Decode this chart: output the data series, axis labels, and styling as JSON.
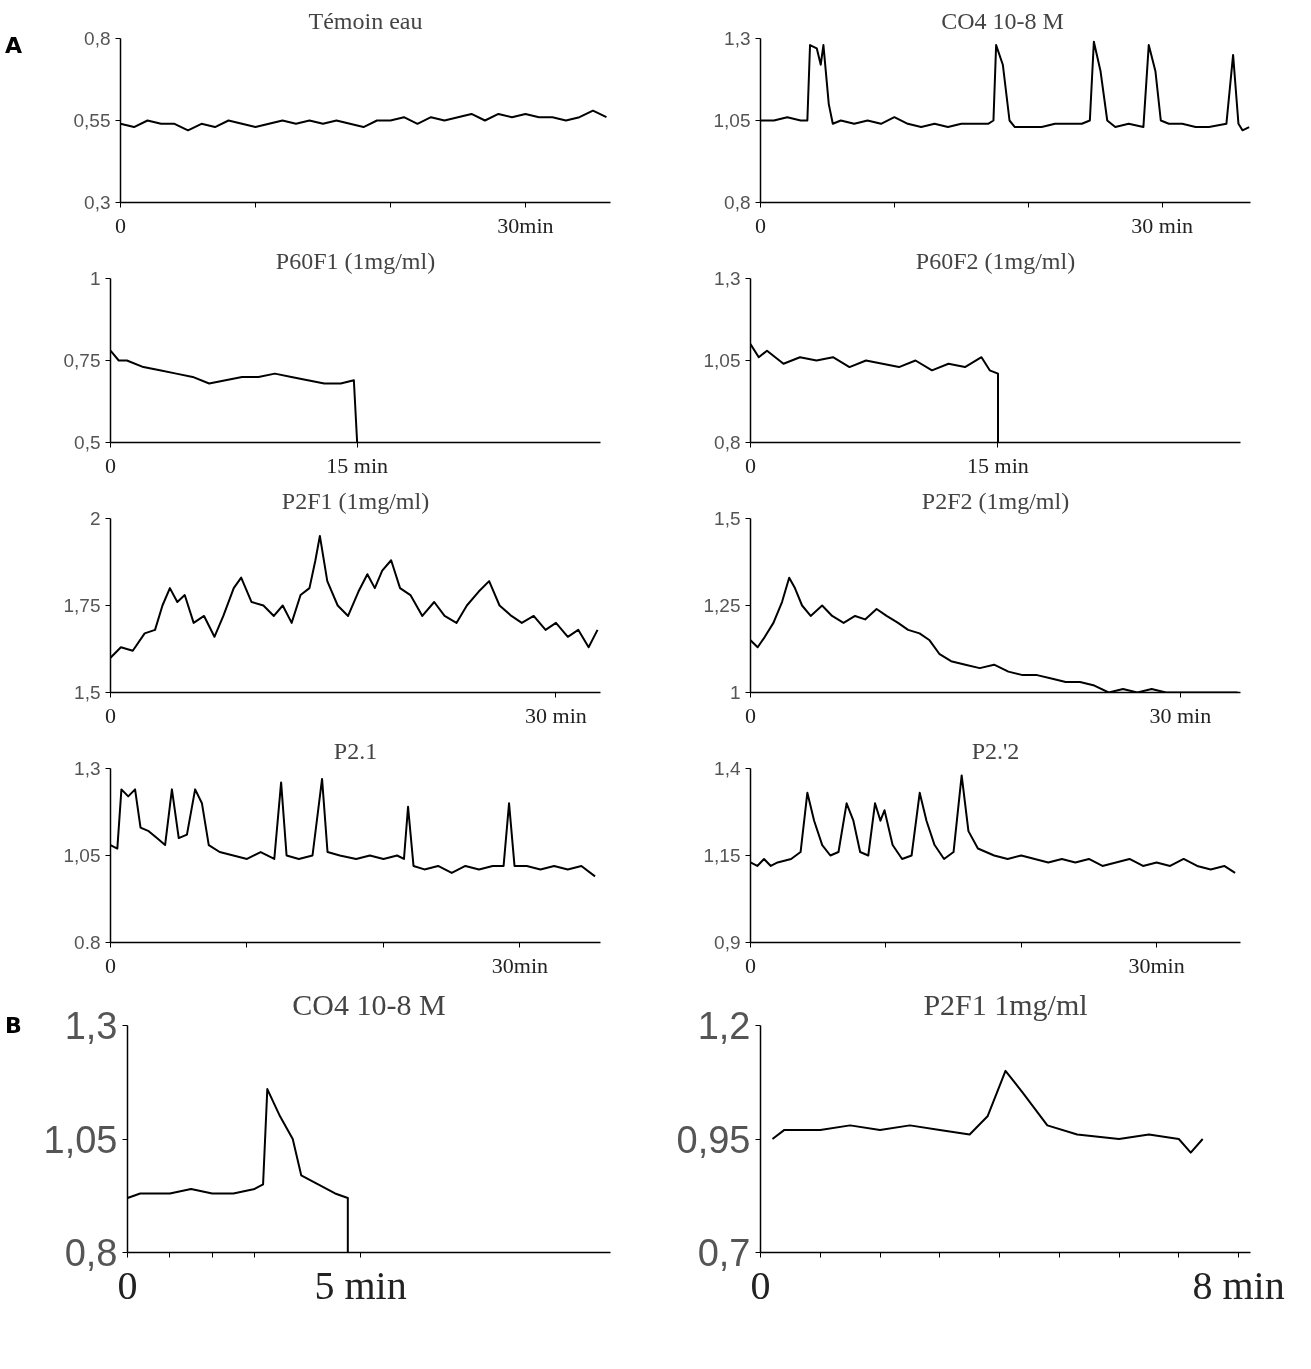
{
  "chart_data": [
    {
      "type": "line",
      "title": "Témoin eau",
      "annotations": [
        "A"
      ],
      "xlim": [
        0,
        36.3
      ],
      "ylim": [
        0.3,
        0.8
      ],
      "xticks": [
        {
          "value": 0,
          "label": "0"
        },
        {
          "value": 10,
          "label": null
        },
        {
          "value": 20,
          "label": null
        },
        {
          "value": 30,
          "label": "30min"
        }
      ],
      "yticks": [
        {
          "value": 0.3,
          "label": "0,3"
        },
        {
          "value": 0.55,
          "label": "0,55"
        },
        {
          "value": 0.8,
          "label": "0,8"
        }
      ],
      "series": [
        {
          "color": "#000000",
          "x": [
            0,
            1,
            2,
            3,
            4,
            5,
            6,
            7,
            8,
            9,
            10,
            11,
            12,
            13,
            14,
            15,
            16,
            17,
            18,
            19,
            20,
            21,
            22,
            23,
            24,
            25,
            26,
            27,
            28,
            29,
            30,
            31,
            32,
            33,
            34,
            35,
            36
          ],
          "values": [
            0.54,
            0.53,
            0.55,
            0.54,
            0.54,
            0.52,
            0.54,
            0.53,
            0.55,
            0.54,
            0.53,
            0.54,
            0.55,
            0.54,
            0.55,
            0.54,
            0.55,
            0.54,
            0.53,
            0.55,
            0.55,
            0.56,
            0.54,
            0.56,
            0.55,
            0.56,
            0.57,
            0.55,
            0.57,
            0.56,
            0.57,
            0.56,
            0.56,
            0.55,
            0.56,
            0.58,
            0.56
          ]
        }
      ]
    },
    {
      "type": "line",
      "title": "CO4 10-8  M",
      "xlim": [
        0,
        36.6
      ],
      "ylim": [
        0.8,
        1.3
      ],
      "xticks": [
        {
          "value": 0,
          "label": "0"
        },
        {
          "value": 10,
          "label": null
        },
        {
          "value": 20,
          "label": null
        },
        {
          "value": 30,
          "label": "30 min"
        }
      ],
      "yticks": [
        {
          "value": 0.8,
          "label": "0,8"
        },
        {
          "value": 1.05,
          "label": "1,05"
        },
        {
          "value": 1.3,
          "label": "1,3"
        }
      ],
      "series": [
        {
          "color": "#000000",
          "x": [
            0,
            1,
            2,
            3,
            3.5,
            3.7,
            4.2,
            4.5,
            4.7,
            5.1,
            5.4,
            6,
            7,
            8,
            9,
            10,
            11,
            12,
            13,
            14,
            15,
            16,
            17,
            17.4,
            17.6,
            18.1,
            18.6,
            19,
            20,
            21,
            22,
            23,
            24,
            24.6,
            24.9,
            25.4,
            25.9,
            26.5,
            27.5,
            28.6,
            29.0,
            29.5,
            29.9,
            30.5,
            31.5,
            32.5,
            33.5,
            34.8,
            35.3,
            35.7,
            36,
            36.5
          ],
          "values": [
            1.05,
            1.05,
            1.06,
            1.05,
            1.05,
            1.28,
            1.27,
            1.22,
            1.28,
            1.1,
            1.04,
            1.05,
            1.04,
            1.05,
            1.04,
            1.06,
            1.04,
            1.03,
            1.04,
            1.03,
            1.04,
            1.04,
            1.04,
            1.05,
            1.28,
            1.22,
            1.05,
            1.03,
            1.03,
            1.03,
            1.04,
            1.04,
            1.04,
            1.05,
            1.29,
            1.2,
            1.05,
            1.03,
            1.04,
            1.03,
            1.28,
            1.2,
            1.05,
            1.04,
            1.04,
            1.03,
            1.03,
            1.04,
            1.25,
            1.04,
            1.02,
            1.03
          ]
        }
      ]
    },
    {
      "type": "line",
      "title": "P60F1 (1mg/ml)",
      "xlim": [
        0,
        29.8
      ],
      "ylim": [
        0.5,
        1
      ],
      "xticks": [
        {
          "value": 0,
          "label": "0"
        },
        {
          "value": 15,
          "label": "15 min"
        }
      ],
      "yticks": [
        {
          "value": 0.5,
          "label": "0,5"
        },
        {
          "value": 0.75,
          "label": "0,75"
        },
        1
      ],
      "series": [
        {
          "color": "#000000",
          "x": [
            0,
            0.5,
            1,
            2,
            3,
            4,
            5,
            6,
            7,
            8,
            9,
            10,
            11,
            12,
            13,
            14,
            14.8,
            15
          ],
          "values": [
            0.78,
            0.75,
            0.75,
            0.73,
            0.72,
            0.71,
            0.7,
            0.68,
            0.69,
            0.7,
            0.7,
            0.71,
            0.7,
            0.69,
            0.68,
            0.68,
            0.69,
            0.5
          ]
        }
      ]
    },
    {
      "type": "line",
      "title": "P60F2 (1mg/ml)",
      "xlim": [
        0,
        29.7
      ],
      "ylim": [
        0.8,
        1.3
      ],
      "xticks": [
        {
          "value": 0,
          "label": "0"
        },
        {
          "value": 15,
          "label": "15 min"
        }
      ],
      "yticks": [
        {
          "value": 0.8,
          "label": "0,8"
        },
        {
          "value": 1.05,
          "label": "1,05"
        },
        {
          "value": 1.3,
          "label": "1,3"
        }
      ],
      "series": [
        {
          "color": "#000000",
          "x": [
            0,
            0.5,
            1,
            2,
            3,
            4,
            5,
            6,
            7,
            8,
            9,
            10,
            11,
            12,
            13,
            14,
            14.5,
            15,
            15
          ],
          "values": [
            1.1,
            1.06,
            1.08,
            1.04,
            1.06,
            1.05,
            1.06,
            1.03,
            1.05,
            1.04,
            1.03,
            1.05,
            1.02,
            1.04,
            1.03,
            1.06,
            1.02,
            1.01,
            0.8
          ]
        }
      ]
    },
    {
      "type": "line",
      "title": "P2F1 (1mg/ml)",
      "xlim": [
        0,
        33
      ],
      "ylim": [
        1.5,
        2
      ],
      "xticks": [
        {
          "value": 0,
          "label": "0"
        },
        {
          "value": 30,
          "label": "30 min"
        }
      ],
      "yticks": [
        {
          "value": 1.5,
          "label": "1,5"
        },
        {
          "value": 1.75,
          "label": "1,75"
        },
        2
      ],
      "series": [
        {
          "color": "#000000",
          "x": [
            0,
            0.7,
            1.5,
            2.3,
            3,
            3.5,
            4,
            4.5,
            5,
            5.6,
            6.3,
            7,
            7.6,
            8.3,
            8.8,
            9.5,
            10.3,
            11,
            11.6,
            12.2,
            12.8,
            13.4,
            13.8,
            14.1,
            14.6,
            15.3,
            16,
            16.7,
            17.3,
            17.8,
            18.3,
            18.9,
            19.5,
            20.2,
            21,
            21.8,
            22.5,
            23.3,
            24,
            24.8,
            25.5,
            26.2,
            27,
            27.7,
            28.5,
            29.3,
            30,
            30.8,
            31.5,
            32.2,
            32.8
          ],
          "values": [
            1.6,
            1.63,
            1.62,
            1.67,
            1.68,
            1.75,
            1.8,
            1.76,
            1.78,
            1.7,
            1.72,
            1.66,
            1.72,
            1.8,
            1.83,
            1.76,
            1.75,
            1.72,
            1.75,
            1.7,
            1.78,
            1.8,
            1.88,
            1.95,
            1.82,
            1.75,
            1.72,
            1.79,
            1.84,
            1.8,
            1.85,
            1.88,
            1.8,
            1.78,
            1.72,
            1.76,
            1.72,
            1.7,
            1.75,
            1.79,
            1.82,
            1.75,
            1.72,
            1.7,
            1.72,
            1.68,
            1.7,
            1.66,
            1.68,
            1.63,
            1.68
          ]
        }
      ]
    },
    {
      "type": "line",
      "title": "P2F2 (1mg/ml)",
      "xlim": [
        0,
        34.2
      ],
      "ylim": [
        1,
        1.5
      ],
      "xticks": [
        {
          "value": 0,
          "label": "0"
        },
        {
          "value": 30,
          "label": "30 min"
        }
      ],
      "yticks": [
        1,
        {
          "value": 1.25,
          "label": "1,25"
        },
        {
          "value": 1.5,
          "label": "1,5"
        }
      ],
      "series": [
        {
          "color": "#000000",
          "x": [
            0,
            0.5,
            1,
            1.6,
            2.2,
            2.7,
            3.1,
            3.6,
            4.2,
            5,
            5.7,
            6.5,
            7.3,
            8,
            8.8,
            9.5,
            10.3,
            11,
            11.8,
            12.5,
            13.2,
            14,
            15,
            16,
            17,
            18,
            19,
            20,
            21,
            22,
            23,
            24,
            25,
            26,
            27,
            28,
            29,
            30,
            31,
            32,
            33,
            34
          ],
          "values": [
            1.15,
            1.13,
            1.16,
            1.2,
            1.26,
            1.33,
            1.3,
            1.25,
            1.22,
            1.25,
            1.22,
            1.2,
            1.22,
            1.21,
            1.24,
            1.22,
            1.2,
            1.18,
            1.17,
            1.15,
            1.11,
            1.09,
            1.08,
            1.07,
            1.08,
            1.06,
            1.05,
            1.05,
            1.04,
            1.03,
            1.03,
            1.02,
            1.0,
            1.01,
            1.0,
            1.01,
            1.0,
            1.0,
            1.0,
            1.0,
            1.0,
            1.0
          ]
        }
      ]
    },
    {
      "type": "line",
      "title": "P2.1",
      "xlim": [
        0,
        35.9
      ],
      "ylim": [
        0.8,
        1.3
      ],
      "xticks": [
        {
          "value": 0,
          "label": "0"
        },
        {
          "value": 10,
          "label": null
        },
        {
          "value": 20,
          "label": null
        },
        {
          "value": 30,
          "label": "30min"
        }
      ],
      "yticks": [
        {
          "value": 0.8,
          "label": "0.8"
        },
        {
          "value": 1.05,
          "label": "1,05"
        },
        {
          "value": 1.3,
          "label": "1,3"
        }
      ],
      "series": [
        {
          "color": "#000000",
          "x": [
            0,
            0.5,
            0.8,
            1.3,
            1.8,
            2.2,
            2.8,
            3.4,
            4,
            4.5,
            5,
            5.6,
            6.2,
            6.7,
            7.2,
            8,
            9,
            10,
            11,
            12,
            12.5,
            12.9,
            13.8,
            14.8,
            15.5,
            15.9,
            16.8,
            18,
            19,
            20,
            21,
            21.5,
            21.8,
            22.2,
            23,
            24,
            25,
            26,
            27,
            28,
            28.8,
            29.2,
            29.6,
            30.5,
            31.5,
            32.5,
            33.5,
            34.5,
            35.5
          ],
          "values": [
            1.08,
            1.07,
            1.24,
            1.22,
            1.24,
            1.13,
            1.12,
            1.1,
            1.08,
            1.24,
            1.1,
            1.11,
            1.24,
            1.2,
            1.08,
            1.06,
            1.05,
            1.04,
            1.06,
            1.04,
            1.26,
            1.05,
            1.04,
            1.05,
            1.27,
            1.06,
            1.05,
            1.04,
            1.05,
            1.04,
            1.05,
            1.04,
            1.19,
            1.02,
            1.01,
            1.02,
            1.0,
            1.02,
            1.01,
            1.02,
            1.02,
            1.2,
            1.02,
            1.02,
            1.01,
            1.02,
            1.01,
            1.02,
            0.99
          ]
        }
      ]
    },
    {
      "type": "line",
      "title": "P2.'2",
      "xlim": [
        0,
        36.2
      ],
      "ylim": [
        0.9,
        1.4
      ],
      "xticks": [
        {
          "value": 0,
          "label": "0"
        },
        {
          "value": 10,
          "label": null
        },
        {
          "value": 20,
          "label": null
        },
        {
          "value": 30,
          "label": "30min"
        }
      ],
      "yticks": [
        {
          "value": 0.9,
          "label": "0,9"
        },
        {
          "value": 1.15,
          "label": "1,15"
        },
        {
          "value": 1.4,
          "label": "1,4"
        }
      ],
      "series": [
        {
          "color": "#000000",
          "x": [
            0,
            0.5,
            1,
            1.5,
            2,
            3,
            3.7,
            4.2,
            4.7,
            5.3,
            5.9,
            6.5,
            7.1,
            7.6,
            8.1,
            8.7,
            9.2,
            9.6,
            9.9,
            10.5,
            11.2,
            11.9,
            12.5,
            13,
            13.6,
            14.3,
            15,
            15.6,
            16.1,
            16.8,
            18,
            19,
            20,
            21,
            22,
            23,
            24,
            25,
            26,
            27,
            28,
            29,
            30,
            31,
            32,
            33,
            34,
            35,
            35.8
          ],
          "values": [
            1.13,
            1.12,
            1.14,
            1.12,
            1.13,
            1.14,
            1.16,
            1.33,
            1.25,
            1.18,
            1.15,
            1.16,
            1.3,
            1.25,
            1.16,
            1.15,
            1.3,
            1.25,
            1.28,
            1.18,
            1.14,
            1.15,
            1.33,
            1.25,
            1.18,
            1.14,
            1.16,
            1.38,
            1.22,
            1.17,
            1.15,
            1.14,
            1.15,
            1.14,
            1.13,
            1.14,
            1.13,
            1.14,
            1.12,
            1.13,
            1.14,
            1.12,
            1.13,
            1.12,
            1.14,
            1.12,
            1.11,
            1.12,
            1.1
          ]
        }
      ]
    },
    {
      "type": "line",
      "title": "CO4 10-8 M",
      "annotations": [
        "B"
      ],
      "xlim": [
        0,
        11.4
      ],
      "ylim": [
        0.8,
        1.3
      ],
      "xticks": [
        {
          "value": 0,
          "label": "0"
        },
        {
          "value": 1,
          "label": null
        },
        {
          "value": 2,
          "label": null
        },
        {
          "value": 3,
          "label": null
        },
        {
          "value": 5.5,
          "label": "5 min"
        }
      ],
      "yticks": [
        {
          "value": 0.8,
          "label": "0,8"
        },
        {
          "value": 1.05,
          "label": "1,05"
        },
        {
          "value": 1.3,
          "label": "1,3"
        }
      ],
      "series": [
        {
          "color": "#000000",
          "x": [
            0,
            0.3,
            1,
            1.5,
            2,
            2.5,
            3,
            3.2,
            3.3,
            3.6,
            3.9,
            4.1,
            4.5,
            4.9,
            5.2,
            5.2
          ],
          "values": [
            0.92,
            0.93,
            0.93,
            0.94,
            0.93,
            0.93,
            0.94,
            0.95,
            1.16,
            1.1,
            1.05,
            0.97,
            0.95,
            0.93,
            0.92,
            0.8
          ]
        }
      ]
    },
    {
      "type": "line",
      "title": "P2F1 1mg/ml",
      "xlim": [
        0,
        8.2
      ],
      "ylim": [
        0.7,
        1.2
      ],
      "xticks": [
        {
          "value": 0,
          "label": "0"
        },
        {
          "value": 1,
          "label": null
        },
        {
          "value": 2,
          "label": null
        },
        {
          "value": 3,
          "label": null
        },
        {
          "value": 4,
          "label": null
        },
        {
          "value": 5,
          "label": null
        },
        {
          "value": 6,
          "label": null
        },
        {
          "value": 7,
          "label": null
        },
        {
          "value": 8,
          "label": "8 min"
        }
      ],
      "yticks": [
        {
          "value": 0.7,
          "label": "0,7"
        },
        {
          "value": 0.95,
          "label": "0,95"
        },
        {
          "value": 1.2,
          "label": "1,2"
        }
      ],
      "series": [
        {
          "color": "#000000",
          "x": [
            0.2,
            0.4,
            1,
            1.5,
            2,
            2.5,
            3,
            3.5,
            3.8,
            4.1,
            4.4,
            4.8,
            5.3,
            6,
            6.5,
            7,
            7.2,
            7.4
          ],
          "values": [
            0.95,
            0.97,
            0.97,
            0.98,
            0.97,
            0.98,
            0.97,
            0.96,
            1.0,
            1.1,
            1.05,
            0.98,
            0.96,
            0.95,
            0.96,
            0.95,
            0.92,
            0.95
          ]
        }
      ]
    }
  ]
}
